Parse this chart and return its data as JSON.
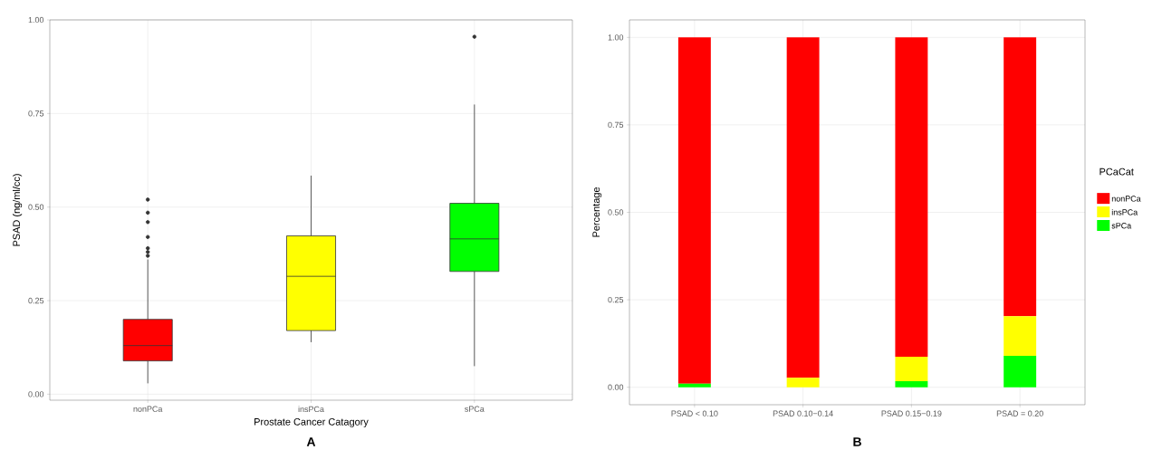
{
  "chart_data": [
    {
      "type": "box",
      "xlabel": "Prostate Cancer Catagory",
      "ylabel": "PSAD (ng/ml/cc)",
      "categories": [
        "nonPCa",
        "insPCa",
        "sPCa"
      ],
      "boxes": [
        {
          "low": 0.029,
          "q1": 0.089,
          "median": 0.13,
          "q3": 0.2,
          "high": 0.36,
          "outliers": [
            0.37,
            0.38,
            0.39,
            0.42,
            0.46,
            0.485,
            0.52
          ]
        },
        {
          "low": 0.139,
          "q1": 0.17,
          "median": 0.315,
          "q3": 0.423,
          "high": 0.584
        },
        {
          "low": 0.075,
          "q1": 0.328,
          "median": 0.415,
          "q3": 0.51,
          "high": 0.774,
          "outliers": [
            0.955
          ]
        }
      ],
      "colors": [
        "#ff0000",
        "#ffff00",
        "#00ff00"
      ],
      "ylim": [
        -0.016,
        1.0
      ],
      "yticks": [
        {
          "value": 0,
          "label": "0.00"
        },
        {
          "value": 0.25,
          "label": "0.25"
        },
        {
          "value": 0.5,
          "label": "0.50"
        },
        {
          "value": 0.75,
          "label": "0.75"
        },
        {
          "value": 1,
          "label": "1.00"
        }
      ],
      "grid": true,
      "annotations": [
        "A"
      ]
    },
    {
      "type": "bar",
      "stacked": true,
      "ylabel": "Percentage",
      "legend_title": "PCaCat",
      "legend": "right",
      "categories": [
        "PSAD < 0.10",
        "PSAD 0.10−0.14",
        "PSAD 0.15−0.19",
        "PSAD = 0.20"
      ],
      "series": [
        {
          "name": "sPCa",
          "color": "#00ff00",
          "values": [
            0.01,
            0,
            0.017,
            0.09
          ]
        },
        {
          "name": "insPCa",
          "color": "#ffff00",
          "values": [
            0,
            0.027,
            0.07,
            0.113
          ]
        },
        {
          "name": "nonPCa",
          "color": "#ff0000",
          "values": [
            0.99,
            0.973,
            0.913,
            0.797
          ]
        }
      ],
      "ylim": [
        -0.05,
        1.05
      ],
      "yticks": [
        {
          "value": 0,
          "label": "0.00"
        },
        {
          "value": 0.25,
          "label": "0.25"
        },
        {
          "value": 0.5,
          "label": "0.50"
        },
        {
          "value": 0.75,
          "label": "0.75"
        },
        {
          "value": 1,
          "label": "1.00"
        }
      ],
      "grid": true,
      "annotations": [
        "B"
      ]
    }
  ]
}
